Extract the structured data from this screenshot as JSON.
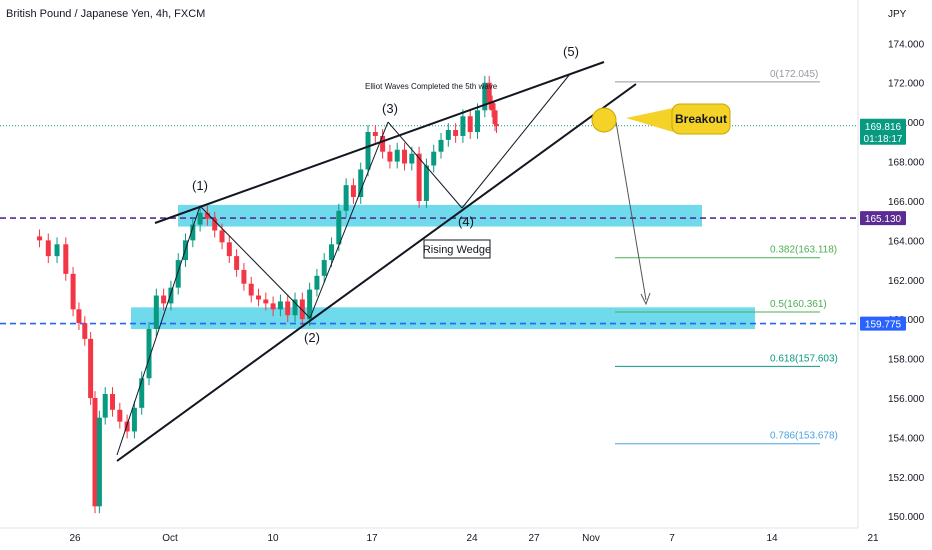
{
  "chart_data": {
    "type": "candlestick",
    "title": "British Pound / Japanese Yen, 4h, FXCM",
    "currency": "JPY",
    "ylim": [
      149.4,
      176.2
    ],
    "y_ticks": [
      174,
      172,
      170,
      168,
      166,
      164,
      162,
      160,
      158,
      156,
      154,
      152,
      150
    ],
    "y_tick_labels": [
      "174.000",
      "172.000",
      "170.000",
      "168.000",
      "166.000",
      "164.000",
      "162.000",
      "160.000",
      "158.000",
      "156.000",
      "154.000",
      "152.000",
      "150.000"
    ],
    "x_domain_days": [
      -9.5,
      22.5
    ],
    "x_ticks": [
      {
        "label": "26",
        "day": -5
      },
      {
        "label": "Oct",
        "day": 0
      },
      {
        "label": "10",
        "day": 10
      },
      {
        "label": "17",
        "day": 17
      },
      {
        "label": "24",
        "day": 24
      },
      {
        "label": "27",
        "day": 27
      },
      {
        "label": "Nov",
        "day": 31
      },
      {
        "label": "7",
        "day": 38
      },
      {
        "label": "14",
        "day": 45
      },
      {
        "label": "21",
        "day": 52
      }
    ],
    "x_note": "x positions are in trading days counted from Oct 1 (start of Oct)",
    "price_path": [
      {
        "day": -9.5,
        "price": 164.2
      },
      {
        "day": -8.8,
        "price": 164.0
      },
      {
        "day": -8.2,
        "price": 163.2
      },
      {
        "day": -7.6,
        "price": 163.8
      },
      {
        "day": -7.0,
        "price": 162.3
      },
      {
        "day": -6.5,
        "price": 160.5
      },
      {
        "day": -6.1,
        "price": 159.8
      },
      {
        "day": -5.7,
        "price": 159.0
      },
      {
        "day": -5.3,
        "price": 156.0
      },
      {
        "day": -5.0,
        "price": 150.5
      },
      {
        "day": -4.7,
        "price": 155.0
      },
      {
        "day": -4.3,
        "price": 156.2
      },
      {
        "day": -3.8,
        "price": 155.4
      },
      {
        "day": -3.3,
        "price": 154.8
      },
      {
        "day": -2.8,
        "price": 154.3
      },
      {
        "day": -2.3,
        "price": 155.5
      },
      {
        "day": -1.8,
        "price": 157.0
      },
      {
        "day": -1.3,
        "price": 159.5
      },
      {
        "day": -0.8,
        "price": 161.2
      },
      {
        "day": -0.3,
        "price": 160.8
      },
      {
        "day": 0.2,
        "price": 161.6
      },
      {
        "day": 0.7,
        "price": 163.0
      },
      {
        "day": 1.2,
        "price": 164.0
      },
      {
        "day": 1.7,
        "price": 164.8
      },
      {
        "day": 2.2,
        "price": 165.4
      },
      {
        "day": 2.7,
        "price": 165.1
      },
      {
        "day": 3.2,
        "price": 164.5
      },
      {
        "day": 3.7,
        "price": 163.9
      },
      {
        "day": 4.2,
        "price": 163.2
      },
      {
        "day": 4.7,
        "price": 162.5
      },
      {
        "day": 5.2,
        "price": 161.8
      },
      {
        "day": 5.7,
        "price": 161.2
      },
      {
        "day": 6.2,
        "price": 161.0
      },
      {
        "day": 6.7,
        "price": 160.8
      },
      {
        "day": 7.2,
        "price": 160.5
      },
      {
        "day": 7.7,
        "price": 160.9
      },
      {
        "day": 8.2,
        "price": 160.2
      },
      {
        "day": 8.7,
        "price": 161.0
      },
      {
        "day": 9.2,
        "price": 160.0
      },
      {
        "day": 9.7,
        "price": 161.5
      },
      {
        "day": 10.2,
        "price": 162.2
      },
      {
        "day": 10.7,
        "price": 163.0
      },
      {
        "day": 11.2,
        "price": 163.8
      },
      {
        "day": 11.7,
        "price": 165.5
      },
      {
        "day": 12.2,
        "price": 166.8
      },
      {
        "day": 12.7,
        "price": 166.2
      },
      {
        "day": 13.2,
        "price": 167.6
      },
      {
        "day": 13.7,
        "price": 169.5
      },
      {
        "day": 14.2,
        "price": 169.3
      },
      {
        "day": 14.7,
        "price": 168.5
      },
      {
        "day": 15.2,
        "price": 168.0
      },
      {
        "day": 15.7,
        "price": 168.6
      },
      {
        "day": 16.2,
        "price": 167.9
      },
      {
        "day": 16.7,
        "price": 168.4
      },
      {
        "day": 17.2,
        "price": 166.0
      },
      {
        "day": 17.7,
        "price": 167.8
      },
      {
        "day": 18.2,
        "price": 168.5
      },
      {
        "day": 18.7,
        "price": 169.1
      },
      {
        "day": 19.2,
        "price": 169.6
      },
      {
        "day": 19.7,
        "price": 169.3
      },
      {
        "day": 20.2,
        "price": 170.3
      },
      {
        "day": 20.7,
        "price": 169.5
      },
      {
        "day": 21.2,
        "price": 170.6
      },
      {
        "day": 21.7,
        "price": 172.0
      },
      {
        "day": 22.0,
        "price": 171.0
      },
      {
        "day": 22.2,
        "price": 170.6
      },
      {
        "day": 22.4,
        "price": 169.9
      },
      {
        "day": 22.5,
        "price": 169.8
      }
    ],
    "trendlines": [
      {
        "name": "wedge-upper",
        "from": {
          "day": -9.5,
          "price": 155.0
        },
        "to": {
          "day": 22.5,
          "price": 170.5
        }
      }
    ],
    "annotations": {
      "wave_labels": [
        {
          "label": "(1)",
          "day": 2.6,
          "price": 165.6
        },
        {
          "label": "(2)",
          "day": 9.8,
          "price": 159.6
        },
        {
          "label": "(3)",
          "day": 13.9,
          "price": 169.6
        },
        {
          "label": "(4)",
          "day": 17.3,
          "price": 165.2
        },
        {
          "label": "(5)",
          "day": 21.7,
          "price": 172.1
        }
      ],
      "elliott_note": "Elliot Waves Completed the 5th wave",
      "pattern_label": "Rising Wedge",
      "breakout_label": "Breakout"
    },
    "levels": [
      {
        "name": "current-price",
        "price": 169.816,
        "label": "169.816",
        "countdown": "01:18:17",
        "color": "#089981"
      },
      {
        "name": "resistance",
        "price": 165.13,
        "label": "165.130",
        "color": "#5b2c91"
      },
      {
        "name": "support",
        "price": 159.775,
        "label": "159.775",
        "color": "#2962ff"
      }
    ],
    "fib_levels": [
      {
        "label": "0(172.045)",
        "price": 172.045,
        "color": "#9598a1"
      },
      {
        "label": "0.382(163.118)",
        "price": 163.118,
        "color": "#4caf50"
      },
      {
        "label": "0.5(160.361)",
        "price": 160.361,
        "color": "#4caf50"
      },
      {
        "label": "0.618(157.603)",
        "price": 157.603,
        "color": "#089981"
      },
      {
        "label": "0.786(153.678)",
        "price": 153.678,
        "color": "#4ca4e0"
      }
    ],
    "zones": [
      {
        "name": "resistance-zone",
        "from": 164.7,
        "to": 165.8,
        "color": "#22c6e0"
      },
      {
        "name": "support-zone",
        "from": 159.5,
        "to": 160.6,
        "color": "#22c6e0"
      }
    ],
    "projection_target": 160.5,
    "colors": {
      "up": "#089981",
      "down": "#f23645",
      "zone": "#22c6e0",
      "breakout_fill": "#f5d228"
    }
  }
}
